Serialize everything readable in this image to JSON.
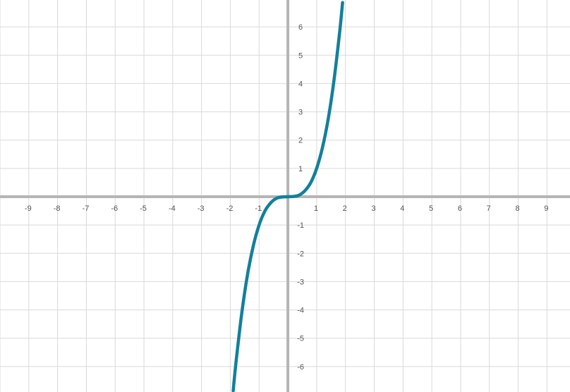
{
  "chart_data": {
    "type": "line",
    "title": "",
    "xlabel": "",
    "ylabel": "",
    "xlim": [
      -10,
      9.8
    ],
    "ylim": [
      -6.9,
      6.95
    ],
    "grid": true,
    "x_ticks": [
      -9,
      -8,
      -7,
      -6,
      -5,
      -4,
      -3,
      -2,
      -1,
      1,
      2,
      3,
      4,
      5,
      6,
      7,
      8,
      9
    ],
    "y_ticks": [
      6,
      5,
      4,
      3,
      2,
      1,
      -1,
      -2,
      -3,
      -4,
      -5,
      -6
    ],
    "x_tick_labels": [
      "-9",
      "-8",
      "-7",
      "-6",
      "-5",
      "-4",
      "-3",
      "-2",
      "-1",
      "1",
      "2",
      "3",
      "4",
      "5",
      "6",
      "7",
      "8",
      "9"
    ],
    "y_tick_labels": [
      "6",
      "5",
      "4",
      "3",
      "2",
      "1",
      "-1",
      "-2",
      "-3",
      "-4",
      "-5",
      "-6"
    ],
    "series": [
      {
        "color": "#12809a",
        "x": [
          -1.9,
          -1.8,
          -1.6,
          -1.4,
          -1.2,
          -1.0,
          -0.8,
          -0.6,
          -0.4,
          -0.2,
          0,
          0.2,
          0.4,
          0.6,
          0.8,
          1.0,
          1.2,
          1.4,
          1.6,
          1.8,
          1.9
        ],
        "y": [
          -6.86,
          -5.83,
          -4.1,
          -2.74,
          -1.73,
          -1.0,
          -0.51,
          -0.22,
          -0.06,
          -0.01,
          0,
          0.01,
          0.06,
          0.22,
          0.51,
          1.0,
          1.73,
          2.74,
          4.1,
          5.83,
          6.86
        ]
      }
    ]
  },
  "colors": {
    "grid": "#d9d9d9",
    "axis": "#b5b5b5",
    "curve": "#12809a",
    "tick_text": "#555555"
  }
}
